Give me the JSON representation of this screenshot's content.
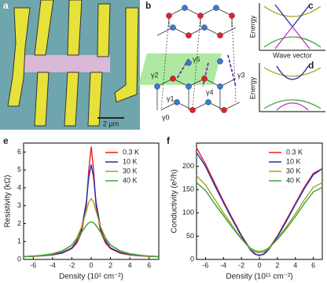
{
  "panel_labels": [
    "a",
    "b",
    "c",
    "d",
    "e",
    "f"
  ],
  "micrograph": {
    "scale_bar": "2 μm"
  },
  "lattice": {
    "labels": [
      "γ5",
      "γ2",
      "γ1",
      "γ4",
      "γ0",
      "γ3"
    ]
  },
  "bands": {
    "y_label": "Energy",
    "x_label": "Wave vector"
  },
  "chart_data": [
    {
      "type": "line",
      "x_label": "Density (10¹ cm⁻²)",
      "y_label": "Resistivity (kΩ)",
      "x": [
        -7,
        -6,
        -5,
        -4,
        -3,
        -2,
        -1.5,
        -1,
        -0.5,
        -0.25,
        0,
        0.25,
        0.5,
        1,
        1.5,
        2,
        3,
        4,
        5,
        6,
        7
      ],
      "series": [
        {
          "name": "0.3 K",
          "color": "#e8201f",
          "values": [
            0.15,
            0.17,
            0.2,
            0.25,
            0.35,
            0.6,
            0.9,
            1.5,
            3.0,
            5.0,
            6.3,
            5.0,
            3.0,
            1.5,
            0.9,
            0.6,
            0.35,
            0.25,
            0.2,
            0.17,
            0.15
          ]
        },
        {
          "name": "10 K",
          "color": "#1f2fb0",
          "values": [
            0.16,
            0.18,
            0.21,
            0.27,
            0.38,
            0.65,
            1.0,
            1.7,
            3.2,
            4.6,
            5.3,
            4.6,
            3.2,
            1.7,
            1.0,
            0.65,
            0.38,
            0.27,
            0.21,
            0.18,
            0.16
          ]
        },
        {
          "name": "30 K",
          "color": "#a8a020",
          "values": [
            0.15,
            0.18,
            0.22,
            0.3,
            0.45,
            0.8,
            1.2,
            1.8,
            2.7,
            3.2,
            3.4,
            3.2,
            2.7,
            1.8,
            1.2,
            0.8,
            0.45,
            0.3,
            0.22,
            0.18,
            0.15
          ]
        },
        {
          "name": "40 K",
          "color": "#3aa43a",
          "values": [
            0.16,
            0.19,
            0.24,
            0.32,
            0.48,
            0.8,
            1.1,
            1.5,
            1.9,
            2.05,
            2.1,
            2.05,
            1.9,
            1.5,
            1.1,
            0.8,
            0.48,
            0.32,
            0.24,
            0.19,
            0.16
          ]
        }
      ],
      "xlim": [
        -7,
        7
      ],
      "ylim": [
        0,
        6.5
      ],
      "xticks": [
        -6,
        -4,
        -2,
        0,
        2,
        4,
        6
      ],
      "yticks": [
        0,
        1,
        2,
        3,
        4,
        5,
        6
      ]
    },
    {
      "type": "line",
      "x_label": "Density (10¹¹ cm⁻²)",
      "y_label": "Conductivity (e²/h)",
      "x": [
        -7,
        -6,
        -5,
        -4,
        -3,
        -2,
        -1,
        -0.5,
        0,
        0.5,
        1,
        2,
        3,
        4,
        5,
        6,
        7
      ],
      "series": [
        {
          "name": "0.3 K",
          "color": "#e8201f",
          "values": [
            240,
            205,
            165,
            125,
            88,
            52,
            22,
            12,
            8,
            12,
            22,
            50,
            85,
            120,
            155,
            185,
            195
          ]
        },
        {
          "name": "10 K",
          "color": "#1f2fb0",
          "values": [
            230,
            200,
            160,
            122,
            85,
            50,
            20,
            11,
            9,
            11,
            20,
            48,
            82,
            118,
            152,
            182,
            195
          ]
        },
        {
          "name": "30 K",
          "color": "#a8a020",
          "values": [
            180,
            160,
            130,
            100,
            72,
            45,
            22,
            16,
            14,
            16,
            22,
            44,
            70,
            98,
            128,
            155,
            165
          ]
        },
        {
          "name": "40 K",
          "color": "#3aa43a",
          "values": [
            165,
            148,
            120,
            94,
            68,
            44,
            24,
            19,
            17,
            19,
            24,
            43,
            66,
            92,
            120,
            145,
            155
          ]
        }
      ],
      "xlim": [
        -7,
        7
      ],
      "ylim": [
        0,
        250
      ],
      "xticks": [
        -6,
        -4,
        -2,
        0,
        2,
        4,
        6
      ],
      "yticks": [
        0,
        50,
        100,
        150,
        200
      ]
    }
  ]
}
